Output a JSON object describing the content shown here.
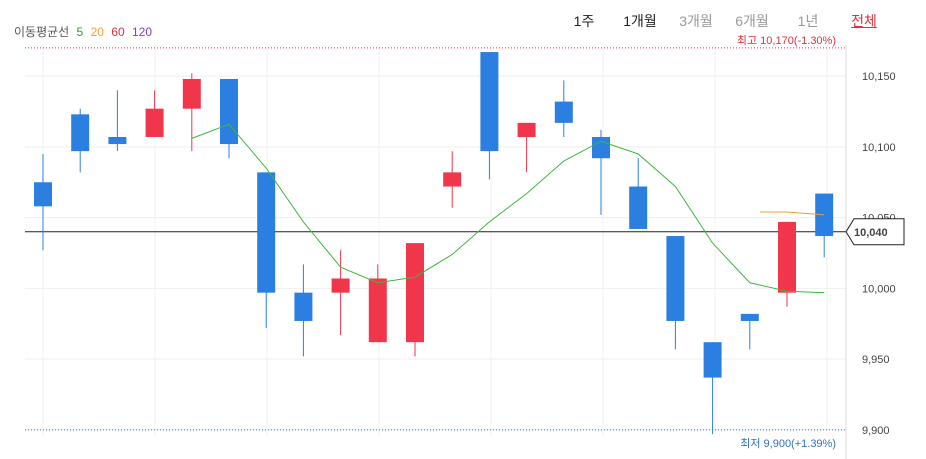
{
  "legend": {
    "title": "이동평균선",
    "items": [
      {
        "label": "5",
        "color": "#2ea02e"
      },
      {
        "label": "20",
        "color": "#f0a030"
      },
      {
        "label": "60",
        "color": "#e0303c"
      },
      {
        "label": "120",
        "color": "#8040c0"
      }
    ]
  },
  "periods": [
    {
      "label": "1주",
      "state": "normal"
    },
    {
      "label": "1개월",
      "state": "selected"
    },
    {
      "label": "3개월",
      "state": "muted"
    },
    {
      "label": "6개월",
      "state": "muted"
    },
    {
      "label": "1년",
      "state": "muted"
    },
    {
      "label": "전체",
      "state": "all"
    }
  ],
  "colors": {
    "up": "#f0364a",
    "down": "#2b7fe0",
    "ma5": "#3cb83c",
    "ma20": "#f0a030",
    "high": "#e0303c",
    "low": "#3070c0"
  },
  "chart_data": {
    "type": "candlestick",
    "ylim": [
      9895,
      10172
    ],
    "yticks": [
      "10,150",
      "10,100",
      "10,050",
      "10,000",
      "9,950",
      "9,900"
    ],
    "candles": [
      {
        "o": 10075,
        "h": 10095,
        "l": 10027,
        "c": 10058
      },
      {
        "o": 10123,
        "h": 10127,
        "l": 10082,
        "c": 10097
      },
      {
        "o": 10107,
        "h": 10140,
        "l": 10097,
        "c": 10102
      },
      {
        "o": 10107,
        "h": 10140,
        "l": 10107,
        "c": 10127
      },
      {
        "o": 10127,
        "h": 10152,
        "l": 10097,
        "c": 10148
      },
      {
        "o": 10148,
        "h": 10148,
        "l": 10092,
        "c": 10102
      },
      {
        "o": 10082,
        "h": 10082,
        "l": 9972,
        "c": 9997
      },
      {
        "o": 9997,
        "h": 10017,
        "l": 9952,
        "c": 9977
      },
      {
        "o": 9997,
        "h": 10027,
        "l": 9967,
        "c": 10007
      },
      {
        "o": 9962,
        "h": 10017,
        "l": 9962,
        "c": 10007
      },
      {
        "o": 9962,
        "h": 10032,
        "l": 9952,
        "c": 10032
      },
      {
        "o": 10072,
        "h": 10097,
        "l": 10057,
        "c": 10082
      },
      {
        "o": 10167,
        "h": 10167,
        "l": 10077,
        "c": 10097
      },
      {
        "o": 10107,
        "h": 10117,
        "l": 10082,
        "c": 10117
      },
      {
        "o": 10132,
        "h": 10147,
        "l": 10107,
        "c": 10117
      },
      {
        "o": 10107,
        "h": 10112,
        "l": 10052,
        "c": 10092
      },
      {
        "o": 10072,
        "h": 10092,
        "l": 10042,
        "c": 10042
      },
      {
        "o": 10037,
        "h": 10037,
        "l": 9957,
        "c": 9977
      },
      {
        "o": 9962,
        "h": 9962,
        "l": 9897,
        "c": 9937
      },
      {
        "o": 9982,
        "h": 9982,
        "l": 9957,
        "c": 9977
      },
      {
        "o": 9997,
        "h": 10047,
        "l": 9987,
        "c": 10047
      },
      {
        "o": 10067,
        "h": 10067,
        "l": 10022,
        "c": 10037
      }
    ],
    "ma5": [
      null,
      null,
      null,
      null,
      10106,
      10116,
      10085,
      10047,
      10015,
      10004,
      10008,
      10024,
      10047,
      10067,
      10090,
      10104,
      10095,
      10072,
      10032,
      10004,
      9998,
      9997
    ],
    "ma20": [
      null,
      null,
      null,
      null,
      null,
      null,
      null,
      null,
      null,
      null,
      null,
      null,
      null,
      null,
      null,
      null,
      null,
      null,
      null,
      null,
      10054,
      10052
    ],
    "current": {
      "value": 10040,
      "label": "10,040"
    },
    "high": {
      "value": 10170,
      "label": "최고 10,170(-1.30%)"
    },
    "low": {
      "value": 9900,
      "label": "최저 9,900(+1.39%)"
    }
  }
}
